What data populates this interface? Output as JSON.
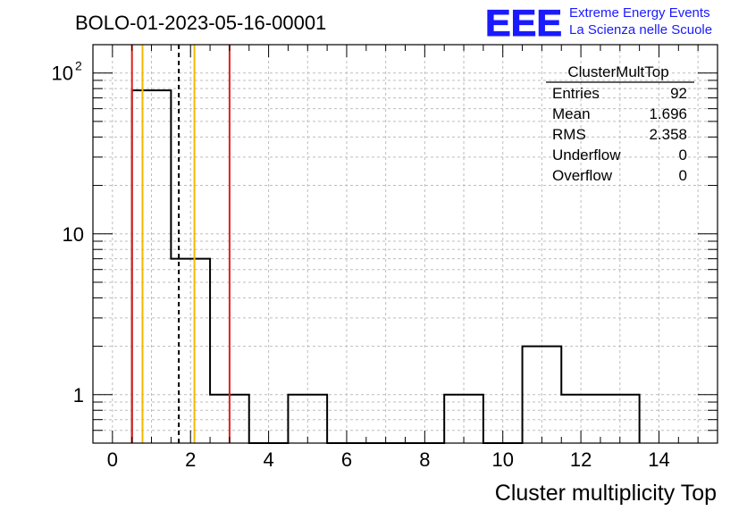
{
  "header": {
    "run_title": "BOLO-01-2023-05-16-00001",
    "logo_text": "EEE",
    "logo_line1": "Extreme Energy Events",
    "logo_line2": "La Scienza nelle Scuole"
  },
  "stats": {
    "title": "ClusterMultTop",
    "rows": [
      {
        "label": "Entries",
        "value": "92"
      },
      {
        "label": "Mean",
        "value": "1.696"
      },
      {
        "label": "RMS",
        "value": "2.358"
      },
      {
        "label": "Underflow",
        "value": "0"
      },
      {
        "label": "Overflow",
        "value": "0"
      }
    ]
  },
  "colors": {
    "histogram": "#000000",
    "red_line": "#e0201b",
    "orange_line": "#f5b800",
    "mean_line": "#000000",
    "logo": "#1a1aff",
    "grid": "#bdbdbd"
  },
  "chart_data": {
    "type": "histogram",
    "xlabel": "Cluster multiplicity Top",
    "ylabel": "",
    "xlim": [
      -0.5,
      15.5
    ],
    "ylim": [
      0.5,
      150
    ],
    "log_y": true,
    "grid": true,
    "x_ticks": [
      0,
      2,
      4,
      6,
      8,
      10,
      12,
      14
    ],
    "y_ticks": [
      {
        "value": 1,
        "base": "1",
        "exp": ""
      },
      {
        "value": 10,
        "base": "10",
        "exp": ""
      },
      {
        "value": 100,
        "base": "10",
        "exp": "2"
      }
    ],
    "bins": [
      {
        "low": 0.5,
        "high": 1.5,
        "count": 78
      },
      {
        "low": 1.5,
        "high": 2.5,
        "count": 7
      },
      {
        "low": 2.5,
        "high": 3.5,
        "count": 1
      },
      {
        "low": 3.5,
        "high": 4.5,
        "count": 0
      },
      {
        "low": 4.5,
        "high": 5.5,
        "count": 1
      },
      {
        "low": 5.5,
        "high": 6.5,
        "count": 0
      },
      {
        "low": 6.5,
        "high": 7.5,
        "count": 0
      },
      {
        "low": 7.5,
        "high": 8.5,
        "count": 0
      },
      {
        "low": 8.5,
        "high": 9.5,
        "count": 1
      },
      {
        "low": 9.5,
        "high": 10.5,
        "count": 0
      },
      {
        "low": 10.5,
        "high": 11.5,
        "count": 2
      },
      {
        "low": 11.5,
        "high": 12.5,
        "count": 1
      },
      {
        "low": 12.5,
        "high": 13.5,
        "count": 1
      }
    ],
    "vertical_lines": [
      {
        "x": 0.5,
        "color": "red",
        "style": "solid"
      },
      {
        "x": 3.0,
        "color": "red",
        "style": "solid"
      },
      {
        "x": 0.77,
        "color": "orange",
        "style": "solid"
      },
      {
        "x": 2.1,
        "color": "orange",
        "style": "solid"
      },
      {
        "x": 1.7,
        "color": "black",
        "style": "dashed"
      }
    ]
  }
}
